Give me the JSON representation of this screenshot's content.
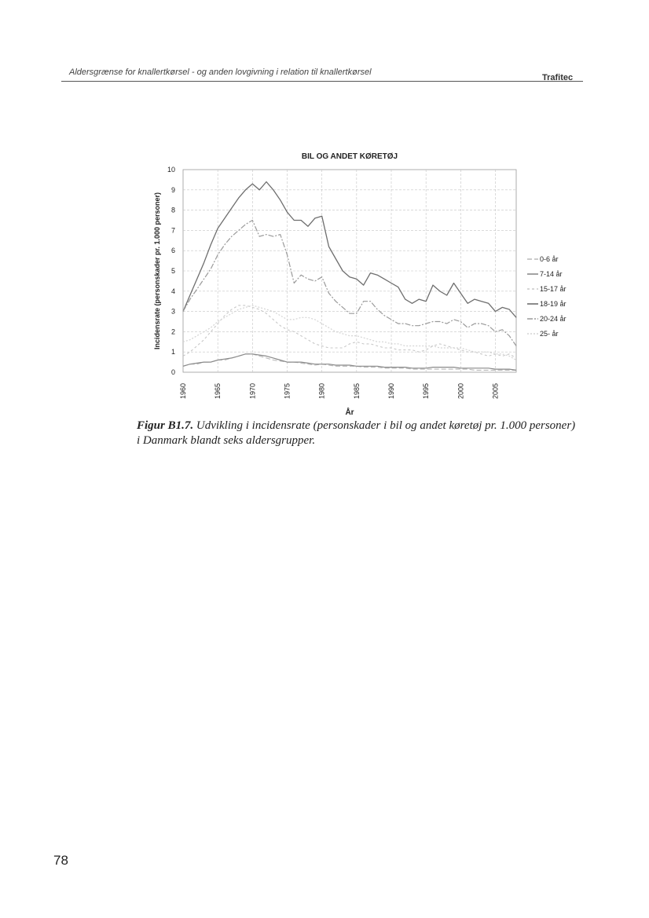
{
  "header": {
    "left_text": "Aldersgrænse for knallertkørsel - og anden lovgivning i relation til knallertkørsel",
    "right_text": "Trafitec"
  },
  "caption": {
    "label": "Figur B1.7.",
    "text": " Udvikling i incidensrate (personskader i bil og andet køretøj pr. 1.000 personer) i Danmark blandt seks aldersgrupper."
  },
  "page_number": "78",
  "chart_data": {
    "type": "line",
    "title": "BIL OG ANDET KØRETØJ",
    "xlabel": "År",
    "ylabel": "Incidensrate (personskader pr. 1.000 personer)",
    "xlim": [
      1960,
      2008
    ],
    "ylim": [
      0,
      10
    ],
    "x_ticks": [
      1960,
      1965,
      1970,
      1975,
      1980,
      1985,
      1990,
      1995,
      2000,
      2005
    ],
    "y_ticks": [
      0,
      1,
      2,
      3,
      4,
      5,
      6,
      7,
      8,
      9,
      10
    ],
    "grid": true,
    "legend_position": "right",
    "colors": {
      "0-6 år": "#b9b9b9",
      "7-14 år": "#8a8a8a",
      "15-17 år": "#c8c8c8",
      "18-19 år": "#6e6e6e",
      "20-24 år": "#9a9a9a",
      "25- år": "#d4d4d4"
    },
    "x": [
      1960,
      1961,
      1962,
      1963,
      1964,
      1965,
      1966,
      1967,
      1968,
      1969,
      1970,
      1971,
      1972,
      1973,
      1974,
      1975,
      1976,
      1977,
      1978,
      1979,
      1980,
      1981,
      1982,
      1983,
      1984,
      1985,
      1986,
      1987,
      1988,
      1989,
      1990,
      1991,
      1992,
      1993,
      1994,
      1995,
      1996,
      1997,
      1998,
      1999,
      2000,
      2001,
      2002,
      2003,
      2004,
      2005,
      2006,
      2007,
      2008
    ],
    "series": [
      {
        "name": "0-6 år",
        "dash": "6,3",
        "width": 1.1,
        "values": [
          0.3,
          0.4,
          0.4,
          0.5,
          0.5,
          0.6,
          0.6,
          0.7,
          0.8,
          0.9,
          0.9,
          0.8,
          0.7,
          0.6,
          0.55,
          0.5,
          0.5,
          0.45,
          0.4,
          0.35,
          0.4,
          0.35,
          0.3,
          0.3,
          0.3,
          0.3,
          0.25,
          0.25,
          0.25,
          0.2,
          0.2,
          0.2,
          0.2,
          0.15,
          0.15,
          0.15,
          0.15,
          0.15,
          0.15,
          0.15,
          0.15,
          0.15,
          0.1,
          0.1,
          0.1,
          0.1,
          0.1,
          0.1,
          0.1
        ]
      },
      {
        "name": "7-14 år",
        "dash": "",
        "width": 1.2,
        "values": [
          0.3,
          0.4,
          0.45,
          0.5,
          0.5,
          0.6,
          0.65,
          0.7,
          0.8,
          0.9,
          0.9,
          0.85,
          0.8,
          0.7,
          0.6,
          0.5,
          0.5,
          0.5,
          0.45,
          0.4,
          0.4,
          0.4,
          0.35,
          0.35,
          0.35,
          0.3,
          0.3,
          0.3,
          0.3,
          0.25,
          0.25,
          0.25,
          0.25,
          0.2,
          0.2,
          0.2,
          0.25,
          0.25,
          0.25,
          0.25,
          0.2,
          0.2,
          0.2,
          0.2,
          0.2,
          0.15,
          0.15,
          0.15,
          0.1
        ]
      },
      {
        "name": "15-17 år",
        "dash": "3,3",
        "width": 1.1,
        "values": [
          0.8,
          1.0,
          1.3,
          1.6,
          2.0,
          2.4,
          2.8,
          3.1,
          3.3,
          3.3,
          3.2,
          3.1,
          2.9,
          2.6,
          2.3,
          2.1,
          2.0,
          1.8,
          1.6,
          1.4,
          1.3,
          1.2,
          1.2,
          1.2,
          1.4,
          1.5,
          1.4,
          1.4,
          1.3,
          1.2,
          1.2,
          1.1,
          1.1,
          1.1,
          1.0,
          1.1,
          1.3,
          1.4,
          1.3,
          1.2,
          1.1,
          1.0,
          1.0,
          0.9,
          0.8,
          0.9,
          0.8,
          0.9,
          0.7
        ]
      },
      {
        "name": "18-19 år",
        "dash": "",
        "width": 1.3,
        "values": [
          3.0,
          3.8,
          4.6,
          5.4,
          6.3,
          7.1,
          7.6,
          8.1,
          8.6,
          9.0,
          9.3,
          9.0,
          9.4,
          9.0,
          8.5,
          7.9,
          7.5,
          7.5,
          7.2,
          7.6,
          7.7,
          6.2,
          5.6,
          5.0,
          4.7,
          4.6,
          4.3,
          4.9,
          4.8,
          4.6,
          4.4,
          4.2,
          3.6,
          3.4,
          3.6,
          3.5,
          4.3,
          4.0,
          3.8,
          4.4,
          3.9,
          3.4,
          3.6,
          3.5,
          3.4,
          3.0,
          3.2,
          3.1,
          2.7
        ]
      },
      {
        "name": "20-24 år",
        "dash": "7,2,2,2",
        "width": 1.2,
        "values": [
          3.0,
          3.6,
          4.1,
          4.6,
          5.1,
          5.8,
          6.3,
          6.7,
          7.0,
          7.3,
          7.5,
          6.7,
          6.8,
          6.7,
          6.8,
          5.8,
          4.4,
          4.8,
          4.6,
          4.5,
          4.7,
          3.9,
          3.5,
          3.2,
          2.9,
          2.9,
          3.5,
          3.5,
          3.1,
          2.8,
          2.6,
          2.4,
          2.4,
          2.3,
          2.3,
          2.4,
          2.5,
          2.5,
          2.4,
          2.6,
          2.5,
          2.2,
          2.4,
          2.4,
          2.3,
          2.0,
          2.1,
          1.8,
          1.3
        ]
      },
      {
        "name": "25- år",
        "dash": "2,2",
        "width": 1.2,
        "values": [
          1.5,
          1.6,
          1.8,
          2.0,
          2.2,
          2.5,
          2.7,
          2.9,
          3.1,
          3.2,
          3.3,
          3.2,
          3.1,
          3.0,
          2.8,
          2.6,
          2.6,
          2.7,
          2.7,
          2.6,
          2.4,
          2.2,
          2.0,
          1.9,
          1.8,
          1.8,
          1.7,
          1.6,
          1.5,
          1.5,
          1.4,
          1.4,
          1.3,
          1.3,
          1.3,
          1.3,
          1.3,
          1.2,
          1.2,
          1.2,
          1.2,
          1.1,
          1.0,
          1.0,
          1.0,
          0.9,
          0.9,
          0.8,
          0.6
        ]
      }
    ]
  }
}
